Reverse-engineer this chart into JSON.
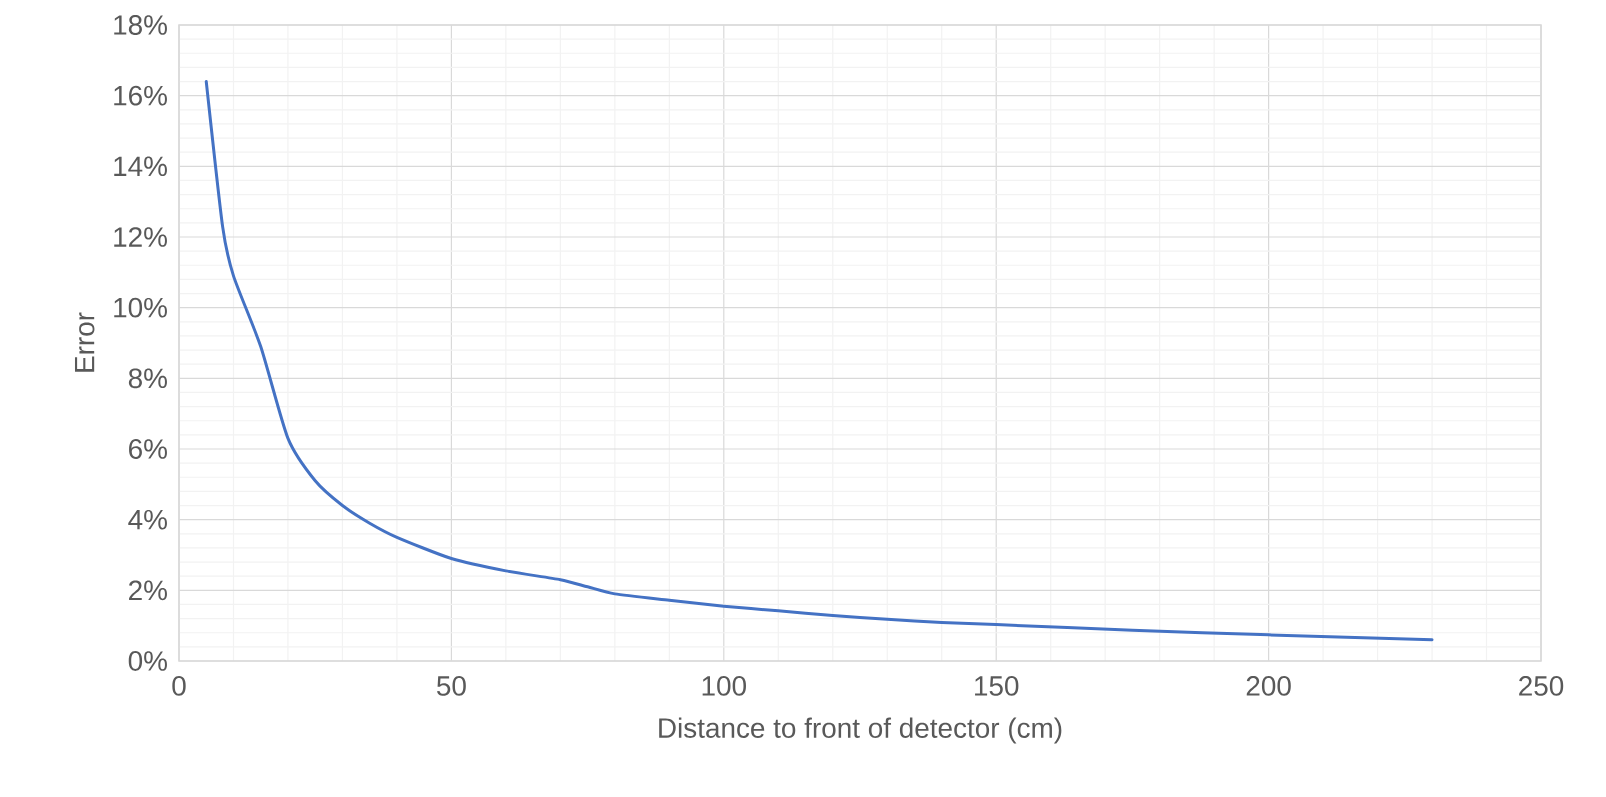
{
  "chart_data": {
    "type": "line",
    "xlabel": "Distance to front of detector (cm)",
    "ylabel": "Error",
    "x": [
      5,
      8,
      10,
      15,
      20,
      25,
      30,
      35,
      40,
      50,
      60,
      70,
      75,
      80,
      90,
      100,
      110,
      120,
      130,
      140,
      150,
      175,
      200,
      230
    ],
    "series": [
      {
        "color": "#4472c4",
        "values": [
          16.4,
          12.3,
          10.9,
          8.9,
          6.3,
          5.1,
          4.4,
          3.9,
          3.5,
          2.9,
          2.55,
          2.3,
          2.1,
          1.9,
          1.72,
          1.55,
          1.42,
          1.29,
          1.18,
          1.09,
          1.03,
          0.87,
          0.74,
          0.6
        ]
      }
    ],
    "xlim": [
      0,
      250
    ],
    "xticks": [
      0,
      50,
      100,
      150,
      200,
      250
    ],
    "ylim": [
      0,
      18
    ],
    "yticks": [
      {
        "value": 0,
        "label": "0%"
      },
      {
        "value": 2,
        "label": "2%"
      },
      {
        "value": 4,
        "label": "4%"
      },
      {
        "value": 6,
        "label": "6%"
      },
      {
        "value": 8,
        "label": "8%"
      },
      {
        "value": 10,
        "label": "10%"
      },
      {
        "value": 12,
        "label": "12%"
      },
      {
        "value": 14,
        "label": "14%"
      },
      {
        "value": 16,
        "label": "16%"
      },
      {
        "value": 18,
        "label": "18%"
      }
    ],
    "grid": true
  }
}
